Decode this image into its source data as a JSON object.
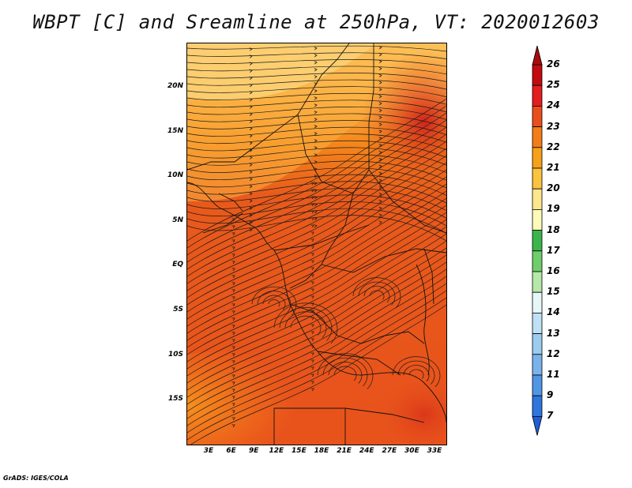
{
  "title": "WBPT [C] and Sreamline at 250hPa, VT: 2020012603",
  "credit": "GrADS: IGES/COLA",
  "map": {
    "lat_labels": [
      "20N",
      "15N",
      "10N",
      "5N",
      "EQ",
      "5S",
      "10S",
      "15S"
    ],
    "lon_labels": [
      "3E",
      "6E",
      "9E",
      "12E",
      "15E",
      "18E",
      "21E",
      "24E",
      "27E",
      "30E",
      "33E"
    ],
    "field_colors": {
      "light_orange": "#fcd176",
      "orange": "#fba32e",
      "dark_orange": "#f47d19",
      "red_orange": "#e8521b",
      "red": "#d63119"
    },
    "line_color": "#1a1a1a"
  },
  "colorbar": {
    "labels": [
      "26",
      "25",
      "24",
      "23",
      "22",
      "21",
      "20",
      "19",
      "18",
      "17",
      "16",
      "15",
      "14",
      "13",
      "12",
      "11",
      "9",
      "7"
    ],
    "colors": [
      "#c20a0f",
      "#e31e1e",
      "#eb4e1d",
      "#f47d19",
      "#f7a11a",
      "#fbc33e",
      "#fde68c",
      "#fefbb8",
      "#3bb54a",
      "#6ecf6a",
      "#b6e8a8",
      "#e7f6f6",
      "#bfe0f5",
      "#9ccbf0",
      "#7ab3ec",
      "#5196e5",
      "#2f76dd"
    ],
    "top_tip_color": "#a80a0e",
    "bottom_tip_color": "#1f5fd6"
  }
}
